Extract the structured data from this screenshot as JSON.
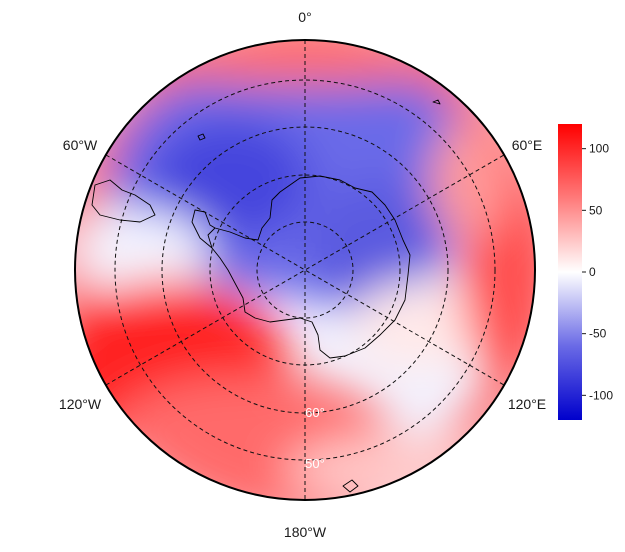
{
  "map": {
    "projection": "south polar stereographic",
    "longitude_labels": {
      "top": "0°",
      "upper_left": "60°W",
      "upper_right": "60°E",
      "lower_left": "120°W",
      "lower_right": "120°E",
      "bottom": "180°W"
    },
    "latitude_labels": [
      "60°",
      "50°"
    ],
    "coastlines": [
      "Antarctica",
      "South America (tip)",
      "Subantarctic islands"
    ],
    "field": {
      "description_regions": [
        {
          "sector": "0° to 60°E, high latitudes",
          "value": -80
        },
        {
          "sector": "60°W to 0°, mid latitudes",
          "value": -90
        },
        {
          "sector": "120°W to 180°W, mid latitudes",
          "value": 120
        },
        {
          "sector": "60°E to 120°E, low latitudes",
          "value": 100
        }
      ]
    }
  },
  "colorbar": {
    "min": -120,
    "max": 120,
    "ticks": [
      "100",
      "50",
      "0",
      "-50",
      "-100"
    ],
    "colors": {
      "negative": "#0000dd",
      "zero": "#ffffff",
      "positive": "#ff0000"
    }
  }
}
